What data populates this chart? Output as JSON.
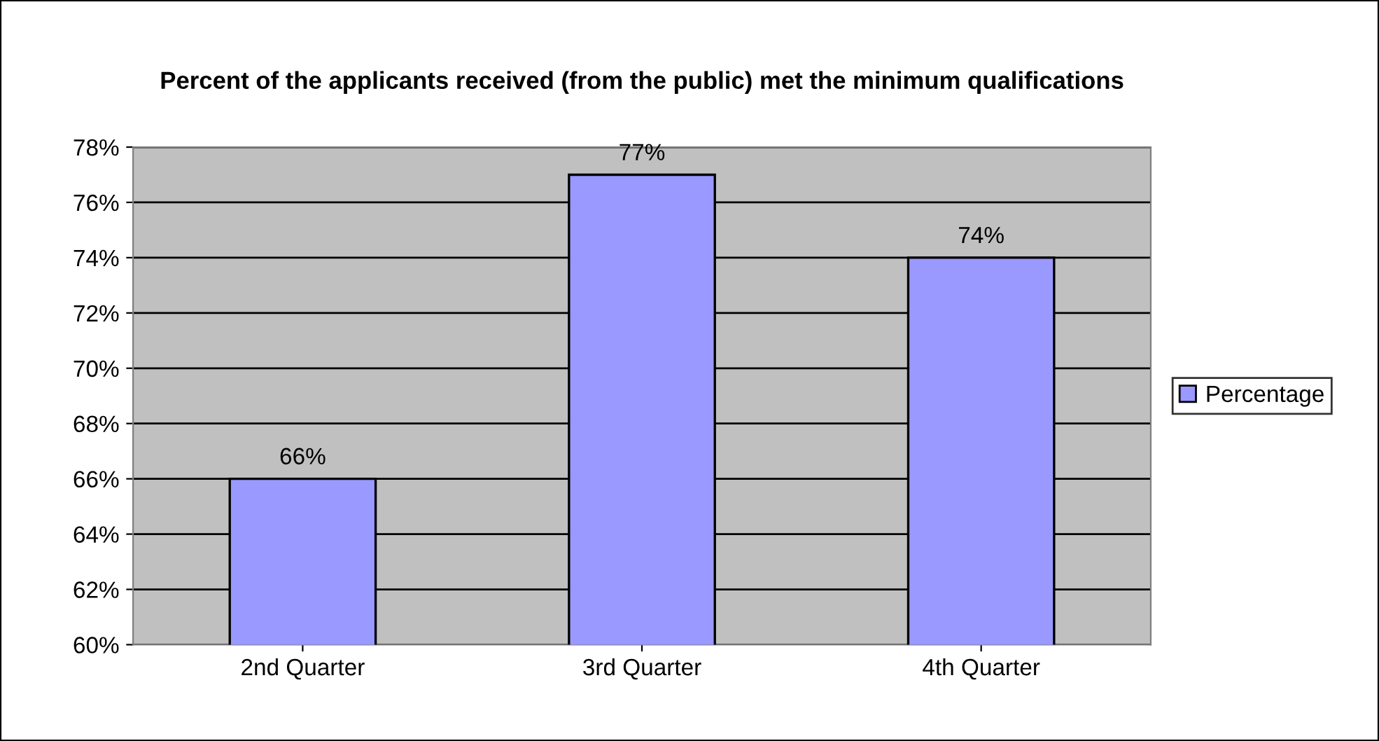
{
  "chart_data": {
    "type": "bar",
    "title": "Percent of the applicants received (from the public) met the minimum qualifications",
    "categories": [
      "2nd Quarter",
      "3rd Quarter",
      "4th Quarter"
    ],
    "series": [
      {
        "name": "Percentage",
        "color": "#9999ff",
        "values": [
          66,
          77,
          74
        ],
        "value_labels": [
          "66%",
          "77%",
          "74%"
        ]
      }
    ],
    "ylim": [
      60,
      78
    ],
    "yticks": [
      {
        "value": 60,
        "label": "60%"
      },
      {
        "value": 62,
        "label": "62%"
      },
      {
        "value": 64,
        "label": "64%"
      },
      {
        "value": 66,
        "label": "66%"
      },
      {
        "value": 68,
        "label": "68%"
      },
      {
        "value": 70,
        "label": "70%"
      },
      {
        "value": 72,
        "label": "72%"
      },
      {
        "value": 74,
        "label": "74%"
      },
      {
        "value": 76,
        "label": "76%"
      },
      {
        "value": 78,
        "label": "78%"
      }
    ],
    "grid": "y",
    "legend": "right"
  }
}
